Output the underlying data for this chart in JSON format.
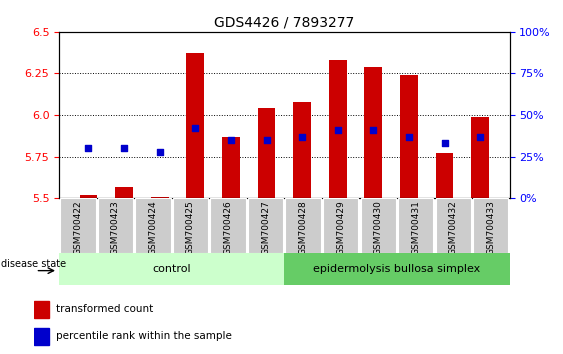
{
  "title": "GDS4426 / 7893277",
  "samples": [
    "GSM700422",
    "GSM700423",
    "GSM700424",
    "GSM700425",
    "GSM700426",
    "GSM700427",
    "GSM700428",
    "GSM700429",
    "GSM700430",
    "GSM700431",
    "GSM700432",
    "GSM700433"
  ],
  "bar_values": [
    5.52,
    5.57,
    5.51,
    6.37,
    5.87,
    6.04,
    6.08,
    6.33,
    6.29,
    6.24,
    5.77,
    5.99
  ],
  "blue_values": [
    5.8,
    5.8,
    5.78,
    5.92,
    5.85,
    5.85,
    5.87,
    5.91,
    5.91,
    5.87,
    5.83,
    5.87
  ],
  "ylim_left": [
    5.5,
    6.5
  ],
  "ylim_right": [
    0,
    100
  ],
  "yticks_left": [
    5.5,
    5.75,
    6.0,
    6.25,
    6.5
  ],
  "yticks_right": [
    0,
    25,
    50,
    75,
    100
  ],
  "ytick_labels_right": [
    "0%",
    "25%",
    "50%",
    "75%",
    "100%"
  ],
  "bar_color": "#cc0000",
  "blue_color": "#0000cc",
  "bar_bottom": 5.5,
  "control_samples": 6,
  "control_label": "control",
  "disease_label": "epidermolysis bullosa simplex",
  "disease_state_label": "disease state",
  "legend_bar_label": "transformed count",
  "legend_blue_label": "percentile rank within the sample",
  "control_bg": "#ccffcc",
  "disease_bg": "#66cc66",
  "xlabel_bg": "#cccccc",
  "title_fontsize": 10,
  "tick_fontsize": 8,
  "bar_width": 0.5
}
